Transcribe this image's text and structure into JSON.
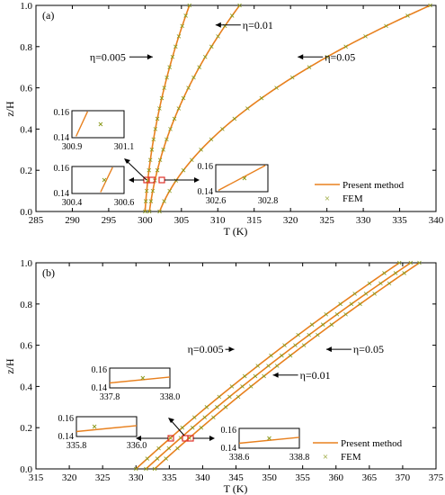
{
  "chart_data": [
    {
      "id": "a",
      "type": "line",
      "panel_label": "(a)",
      "xlabel": "T (K)",
      "ylabel": "z/H",
      "xlim": [
        285,
        340
      ],
      "ylim": [
        0,
        1.0
      ],
      "xticks": [
        285,
        290,
        295,
        300,
        305,
        310,
        315,
        320,
        325,
        330,
        335,
        340
      ],
      "yticks": [
        0.0,
        0.2,
        0.4,
        0.6,
        0.8,
        1.0
      ],
      "grid": false,
      "legend": {
        "position": "bottom-right",
        "entries": [
          {
            "label": "Present method",
            "marker": "line"
          },
          {
            "label": "FEM",
            "marker": "x"
          }
        ]
      },
      "series": [
        {
          "label": "η=0.005",
          "T0": 300.0,
          "T1": 306.1
        },
        {
          "label": "η=0.01",
          "T0": 300.6,
          "T1": 313.0
        },
        {
          "label": "η=0.05",
          "T0": 302.0,
          "T1": 339.2
        }
      ],
      "annotations": [
        {
          "text": "η=0.005",
          "x": 301.3,
          "y": 0.75
        },
        {
          "text": "η=0.01",
          "x": 309.2,
          "y": 0.905
        },
        {
          "text": "η=0.05",
          "x": 320.5,
          "y": 0.75
        }
      ],
      "insets": [
        {
          "xlim": [
            300.9,
            301.1
          ],
          "yticks": [
            "0.16",
            "0.14"
          ],
          "xticks": [
            "300.9",
            "301.1"
          ],
          "line": [
            [
              0.08,
              0.05
            ],
            [
              0.3,
              0.97
            ]
          ],
          "marker": [
            0.55,
            0.5
          ]
        },
        {
          "xlim": [
            300.4,
            300.6
          ],
          "yticks": [
            "0.16",
            "0.14"
          ],
          "xticks": [
            "300.4",
            "300.6"
          ],
          "line": [
            [
              0.55,
              0.05
            ],
            [
              0.78,
              0.97
            ]
          ],
          "marker": [
            0.62,
            0.5
          ]
        },
        {
          "xlim": [
            302.6,
            302.8
          ],
          "yticks": [
            "0.16",
            "0.14"
          ],
          "xticks": [
            "302.6",
            "302.8"
          ],
          "line": [
            [
              0.05,
              0.05
            ],
            [
              0.95,
              0.97
            ]
          ],
          "marker": [
            0.55,
            0.5
          ]
        }
      ]
    },
    {
      "id": "b",
      "type": "line",
      "panel_label": "(b)",
      "xlabel": "T (K)",
      "ylabel": "z/H",
      "xlim": [
        315,
        375
      ],
      "ylim": [
        0,
        1.0
      ],
      "xticks": [
        315,
        320,
        325,
        330,
        335,
        340,
        345,
        350,
        355,
        360,
        365,
        370,
        375
      ],
      "yticks": [
        0.0,
        0.2,
        0.4,
        0.6,
        0.8,
        1.0
      ],
      "grid": false,
      "legend": {
        "position": "bottom-right",
        "entries": [
          {
            "label": "Present method",
            "marker": "line"
          },
          {
            "label": "FEM",
            "marker": "x"
          }
        ]
      },
      "series": [
        {
          "label": "η=0.005",
          "T0": 330.0,
          "T1": 369.5
        },
        {
          "label": "η=0.01",
          "T0": 331.5,
          "T1": 371.2
        },
        {
          "label": "η=0.05",
          "T0": 332.8,
          "T1": 372.5
        }
      ],
      "annotations": [
        {
          "text": "η=0.005",
          "x": 344.2,
          "y": 0.58
        },
        {
          "text": "η=0.05",
          "x": 358.0,
          "y": 0.58
        },
        {
          "text": "η=0.01",
          "x": 350.0,
          "y": 0.455
        }
      ],
      "insets": [
        {
          "xlim": [
            337.8,
            338.0
          ],
          "yticks": [
            "0.16",
            "0.14"
          ],
          "xticks": [
            "337.8",
            "338.0"
          ],
          "line": [
            [
              0.0,
              0.25
            ],
            [
              1.0,
              0.55
            ]
          ],
          "marker": [
            0.55,
            0.5
          ]
        },
        {
          "xlim": [
            335.8,
            336.0
          ],
          "yticks": [
            "0.16",
            "0.14"
          ],
          "xticks": [
            "335.8",
            "336.0"
          ],
          "line": [
            [
              0.0,
              0.25
            ],
            [
              1.0,
              0.55
            ]
          ],
          "marker": [
            0.3,
            0.5
          ]
        },
        {
          "xlim": [
            338.6,
            338.8
          ],
          "yticks": [
            "0.16",
            "0.14"
          ],
          "xticks": [
            "338.6",
            "338.8"
          ],
          "line": [
            [
              0.0,
              0.25
            ],
            [
              1.0,
              0.55
            ]
          ],
          "marker": [
            0.5,
            0.5
          ]
        }
      ]
    }
  ],
  "colors": {
    "curve": "#e8801e",
    "marker": "#8a9a1b",
    "highlight": "#e0322a",
    "axis": "#000000"
  }
}
